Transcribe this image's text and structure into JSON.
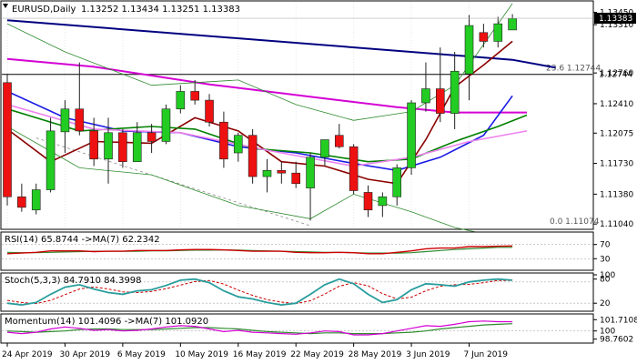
{
  "chart_data": {
    "type": "candlestick",
    "symbol_header": "EURUSD,Daily",
    "ohlc_header": "1.13252 1.13434 1.13251 1.13383",
    "last_price_label": "1.13383",
    "price_ticks": [
      "1.13450",
      "1.13310",
      "1.12744",
      "1.12760",
      "1.12410",
      "1.12075",
      "1.11730",
      "1.11380",
      "1.11040"
    ],
    "price_range": [
      1.1099,
      1.1357
    ],
    "fib_labels": [
      "23.6 1.12744",
      "0.0 1.11074"
    ],
    "fib_values": [
      1.12744,
      1.11074
    ],
    "x_ticks": [
      "24 Apr 2019",
      "30 Apr 2019",
      "6 May 2019",
      "10 May 2019",
      "16 May 2019",
      "22 May 2019",
      "28 May 2019",
      "3 Jun 2019",
      "7 Jun 2019"
    ],
    "x_tick_index": [
      0,
      4,
      8,
      12,
      16,
      20,
      24,
      28,
      32
    ],
    "candles": [
      [
        1.1265,
        1.1275,
        1.1125,
        1.1135
      ],
      [
        1.1135,
        1.115,
        1.1118,
        1.1123
      ],
      [
        1.112,
        1.115,
        1.1115,
        1.1143
      ],
      [
        1.1143,
        1.1225,
        1.114,
        1.121
      ],
      [
        1.1209,
        1.1245,
        1.1185,
        1.1235
      ],
      [
        1.1235,
        1.1288,
        1.1205,
        1.121
      ],
      [
        1.121,
        1.1225,
        1.117,
        1.1178
      ],
      [
        1.1178,
        1.1225,
        1.115,
        1.1208
      ],
      [
        1.1208,
        1.1212,
        1.1168,
        1.1175
      ],
      [
        1.1175,
        1.122,
        1.1175,
        1.1208
      ],
      [
        1.1208,
        1.1218,
        1.1185,
        1.1198
      ],
      [
        1.1198,
        1.124,
        1.1195,
        1.1235
      ],
      [
        1.1235,
        1.1262,
        1.123,
        1.1255
      ],
      [
        1.1255,
        1.1268,
        1.124,
        1.1245
      ],
      [
        1.1245,
        1.1252,
        1.1215,
        1.122
      ],
      [
        1.122,
        1.1232,
        1.1168,
        1.1178
      ],
      [
        1.1185,
        1.1208,
        1.1175,
        1.1205
      ],
      [
        1.1205,
        1.1212,
        1.115,
        1.1158
      ],
      [
        1.1158,
        1.1178,
        1.114,
        1.1165
      ],
      [
        1.1165,
        1.1175,
        1.115,
        1.1162
      ],
      [
        1.1162,
        1.1175,
        1.1145,
        1.115
      ],
      [
        1.1145,
        1.1185,
        1.1108,
        1.118
      ],
      [
        1.118,
        1.12,
        1.117,
        1.12
      ],
      [
        1.1205,
        1.1218,
        1.119,
        1.1192
      ],
      [
        1.1192,
        1.1195,
        1.1138,
        1.1142
      ],
      [
        1.114,
        1.1148,
        1.1112,
        1.112
      ],
      [
        1.1125,
        1.114,
        1.1112,
        1.1135
      ],
      [
        1.1135,
        1.1172,
        1.1125,
        1.1168
      ],
      [
        1.1168,
        1.1245,
        1.116,
        1.1242
      ],
      [
        1.1242,
        1.1288,
        1.1232,
        1.1258
      ],
      [
        1.1258,
        1.1305,
        1.122,
        1.123
      ],
      [
        1.123,
        1.13,
        1.1212,
        1.1278
      ],
      [
        1.1275,
        1.1342,
        1.1245,
        1.133
      ],
      [
        1.1322,
        1.1332,
        1.1305,
        1.1312
      ],
      [
        1.1312,
        1.134,
        1.1305,
        1.1332
      ],
      [
        1.1325,
        1.1343,
        1.1325,
        1.1338
      ]
    ],
    "moving_averages": [
      {
        "color": "#000080",
        "points": [
          [
            0,
            1.1336
          ],
          [
            35,
            1.1291
          ],
          [
            38,
            1.1282
          ]
        ]
      },
      {
        "color": "#d400d4",
        "points": [
          [
            0,
            1.1292
          ],
          [
            6,
            1.1283
          ],
          [
            14,
            1.1263
          ],
          [
            22,
            1.1247
          ],
          [
            27,
            1.1237
          ],
          [
            31,
            1.1231
          ],
          [
            36,
            1.1231
          ]
        ]
      },
      {
        "color": "#1a1ae6",
        "points": [
          [
            0,
            1.1255
          ],
          [
            4,
            1.1225
          ],
          [
            8,
            1.121
          ],
          [
            12,
            1.1208
          ],
          [
            16,
            1.1192
          ],
          [
            20,
            1.1185
          ],
          [
            24,
            1.1173
          ],
          [
            27,
            1.1165
          ],
          [
            30,
            1.118
          ],
          [
            33,
            1.1205
          ],
          [
            35,
            1.125
          ]
        ]
      },
      {
        "color": "#8b0000",
        "points": [
          [
            0,
            1.1212
          ],
          [
            3,
            1.1175
          ],
          [
            6,
            1.1198
          ],
          [
            10,
            1.1196
          ],
          [
            13,
            1.1225
          ],
          [
            16,
            1.121
          ],
          [
            19,
            1.1175
          ],
          [
            22,
            1.117
          ],
          [
            25,
            1.1155
          ],
          [
            27,
            1.115
          ],
          [
            29,
            1.12
          ],
          [
            31,
            1.126
          ],
          [
            33,
            1.1285
          ],
          [
            35,
            1.1312
          ]
        ]
      },
      {
        "color": "#008000",
        "points": [
          [
            0,
            1.1235
          ],
          [
            5,
            1.121
          ],
          [
            10,
            1.1215
          ],
          [
            13,
            1.1212
          ],
          [
            17,
            1.119
          ],
          [
            21,
            1.1185
          ],
          [
            25,
            1.1175
          ],
          [
            28,
            1.1178
          ],
          [
            31,
            1.1198
          ],
          [
            34,
            1.1215
          ],
          [
            36,
            1.1228
          ]
        ]
      },
      {
        "color": "#ee82ee",
        "points": [
          [
            0,
            1.124
          ],
          [
            6,
            1.1212
          ],
          [
            12,
            1.1208
          ],
          [
            18,
            1.1188
          ],
          [
            24,
            1.117
          ],
          [
            28,
            1.118
          ],
          [
            32,
            1.1198
          ],
          [
            36,
            1.121
          ]
        ]
      }
    ],
    "rsi": {
      "label": "RSI(14) 65.8744 ->MA(7) 62.2342",
      "ticks": [
        "70",
        "30"
      ],
      "range": [
        0,
        100
      ],
      "levels": [
        70,
        30
      ],
      "values": [
        44,
        46,
        48,
        52,
        52,
        52,
        50,
        51,
        51,
        53,
        53,
        53,
        55,
        56,
        56,
        55,
        53,
        51,
        51,
        51,
        48,
        47,
        47,
        48,
        47,
        44,
        44,
        48,
        52,
        58,
        60,
        60,
        64,
        64,
        65,
        66
      ],
      "ma": [
        48,
        47,
        47,
        48,
        49,
        50,
        51,
        51,
        51,
        51,
        52,
        52,
        53,
        54,
        54,
        55,
        54,
        53,
        52,
        51,
        50,
        49,
        48,
        48,
        47,
        46,
        46,
        46,
        47,
        50,
        53,
        56,
        58,
        60,
        62,
        62
      ]
    },
    "stoch": {
      "label": "Stoch(5,3,3) 84.7910 84.3998",
      "ticks": [
        "80",
        "100",
        "20"
      ],
      "range": [
        0,
        100
      ],
      "levels": [
        80,
        20
      ],
      "k": [
        20,
        15,
        22,
        45,
        65,
        72,
        60,
        50,
        45,
        55,
        58,
        70,
        85,
        88,
        78,
        55,
        38,
        32,
        22,
        15,
        20,
        45,
        72,
        88,
        75,
        45,
        22,
        30,
        58,
        75,
        72,
        68,
        80,
        85,
        88,
        85
      ],
      "d": [
        28,
        22,
        19,
        28,
        44,
        60,
        66,
        60,
        52,
        50,
        53,
        61,
        71,
        81,
        84,
        74,
        57,
        42,
        30,
        23,
        19,
        27,
        46,
        68,
        78,
        69,
        47,
        32,
        37,
        55,
        68,
        72,
        73,
        78,
        84,
        84
      ]
    },
    "momentum": {
      "label": "Momentum(14) 101.4096 ->MA(7) 101.0920",
      "ticks": [
        "101.7108",
        "100",
        "98.7602"
      ],
      "range": [
        98.3,
        102.3
      ],
      "level": 100,
      "values": [
        99.8,
        99.6,
        99.8,
        100.3,
        100.6,
        100.4,
        100.1,
        100.2,
        100.0,
        100.1,
        100.3,
        100.6,
        100.8,
        100.7,
        100.3,
        99.9,
        100.1,
        99.8,
        99.7,
        99.6,
        99.5,
        99.7,
        100.0,
        99.9,
        99.4,
        99.4,
        99.6,
        100.0,
        100.4,
        100.8,
        100.7,
        101.0,
        101.4,
        101.5,
        101.4,
        101.4
      ],
      "ma": [
        100.0,
        99.9,
        99.8,
        99.9,
        100.0,
        100.2,
        100.3,
        100.3,
        100.2,
        100.2,
        100.2,
        100.3,
        100.4,
        100.5,
        100.5,
        100.4,
        100.3,
        100.1,
        99.9,
        99.8,
        99.7,
        99.6,
        99.7,
        99.7,
        99.6,
        99.6,
        99.6,
        99.7,
        99.8,
        100.0,
        100.3,
        100.5,
        100.7,
        100.9,
        101.0,
        101.1
      ]
    }
  }
}
